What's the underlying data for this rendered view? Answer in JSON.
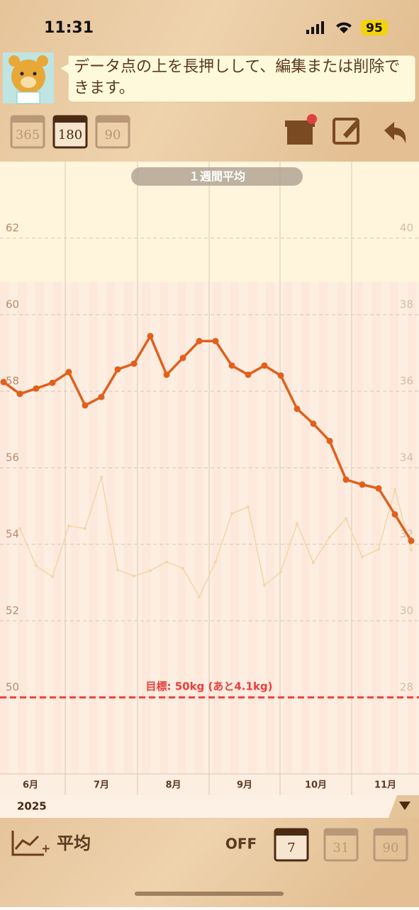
{
  "status_bar": {
    "time": "11:31",
    "battery": "95"
  },
  "tip": {
    "text": "データ点の上を長押しして、編集または削除できます。"
  },
  "range_buttons": [
    "365",
    "180",
    "90"
  ],
  "chart_data": {
    "type": "line",
    "title": "１週間平均",
    "categories": [
      null,
      null,
      null,
      null,
      null,
      null,
      null,
      null,
      null,
      null,
      null,
      null,
      null,
      null,
      null,
      null,
      null,
      null,
      null,
      null,
      null,
      null,
      null,
      null,
      null,
      null
    ],
    "series": [
      {
        "color": "#e0601c",
        "values": [
          58.24,
          57.93,
          58.07,
          58.22,
          58.5,
          57.63,
          57.85,
          58.57,
          58.72,
          59.44,
          58.43,
          58.87,
          59.31,
          59.31,
          58.67,
          58.43,
          58.67,
          58.41,
          57.54,
          57.15,
          56.7,
          55.69,
          55.56,
          55.46,
          54.78,
          54.09
        ]
      },
      {
        "color": "#f3d6a6",
        "axis": "y2",
        "values": [
          null,
          32.41,
          31.44,
          31.15,
          32.48,
          32.41,
          33.76,
          31.33,
          31.17,
          31.31,
          31.54,
          31.37,
          30.63,
          31.54,
          32.8,
          32.98,
          30.93,
          31.28,
          32.54,
          31.52,
          32.19,
          32.67,
          31.67,
          31.87,
          33.43,
          31.85
        ]
      }
    ],
    "ylim": [
      48,
      64
    ],
    "yticks": [
      50,
      52,
      54,
      56,
      58,
      60,
      62
    ],
    "y2lim": [
      26,
      42
    ],
    "y2ticks": [
      28,
      30,
      32,
      34,
      36,
      38,
      40
    ],
    "grid": true,
    "goal": {
      "value": 50,
      "label": "目標: 50kg (あと4.1kg)",
      "color": "#e8403c"
    },
    "month_labels": [
      "6月",
      "7月",
      "8月",
      "9月",
      "10月",
      "11月"
    ],
    "year": "2025"
  },
  "footer": {
    "label": "平均",
    "toggle": "OFF",
    "period_buttons": [
      "7",
      "31",
      "90"
    ]
  }
}
